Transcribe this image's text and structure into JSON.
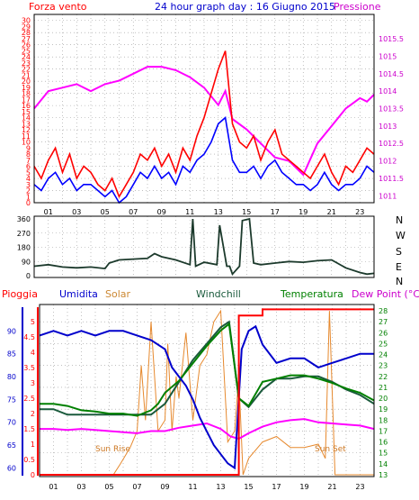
{
  "title": "24 hour graph day : 16 Giugno 2015",
  "colors": {
    "wind": "#ff0000",
    "pressure": "#ff00ff",
    "gust": "#0000ff",
    "direction": "#1c3a2c",
    "rain": "#ff0000",
    "humidity": "#0000cc",
    "solar": "#e6892e",
    "windchill": "#1a5a3c",
    "temperature": "#008000",
    "dewpoint": "#ff00ff",
    "grid": "#9a9a9a"
  },
  "chart_data": [
    {
      "id": "wind",
      "type": "line",
      "left_axis_label": "Forza vento",
      "right_axis_label": "Pressione",
      "x_ticks": [
        "01",
        "03",
        "05",
        "07",
        "09",
        "11",
        "13",
        "15",
        "17",
        "19",
        "21",
        "23"
      ],
      "x_range": [
        0,
        24
      ],
      "ylim_left": [
        0,
        31
      ],
      "ylim_right": [
        1010.8,
        1016.2
      ],
      "left_ticks": [
        0,
        1,
        2,
        3,
        4,
        5,
        6,
        7,
        8,
        9,
        10,
        11,
        12,
        13,
        14,
        15,
        16,
        17,
        18,
        19,
        20,
        21,
        22,
        23,
        24,
        25,
        26,
        27,
        28,
        29,
        30
      ],
      "right_ticks": [
        "1011",
        "1011.5",
        "1012",
        "1012.5",
        "1013",
        "1013.5",
        "1014",
        "1014.5",
        "1015",
        "1015.5"
      ],
      "series": [
        {
          "key": "pressure",
          "axis": "right",
          "x": [
            0,
            1,
            2,
            3,
            4,
            5,
            6,
            7,
            8,
            9,
            10,
            11,
            12,
            13,
            13.5,
            14,
            15,
            16,
            17,
            18,
            19,
            20,
            21,
            22,
            23,
            23.5,
            24
          ],
          "y": [
            1013.5,
            1014.0,
            1014.1,
            1014.2,
            1014.0,
            1014.2,
            1014.3,
            1014.5,
            1014.7,
            1014.7,
            1014.6,
            1014.4,
            1014.1,
            1013.6,
            1014.0,
            1013.2,
            1012.9,
            1012.5,
            1012.1,
            1012.0,
            1011.6,
            1012.5,
            1013.0,
            1013.5,
            1013.8,
            1013.7,
            1013.9
          ]
        },
        {
          "key": "wind",
          "axis": "left",
          "x": [
            0,
            0.5,
            1,
            1.5,
            2,
            2.5,
            3,
            3.5,
            4,
            4.5,
            5,
            5.5,
            6,
            6.5,
            7,
            7.5,
            8,
            8.5,
            9,
            9.5,
            10,
            10.5,
            11,
            11.5,
            12,
            12.5,
            13,
            13.5,
            14,
            14.5,
            15,
            15.5,
            16,
            16.5,
            17,
            17.5,
            18,
            18.5,
            19,
            19.5,
            20,
            20.5,
            21,
            21.5,
            22,
            22.5,
            23,
            23.5,
            24
          ],
          "y": [
            6,
            4,
            7,
            9,
            5,
            8,
            4,
            6,
            5,
            3,
            2,
            4,
            1,
            3,
            5,
            8,
            7,
            9,
            6,
            8,
            5,
            9,
            7,
            11,
            14,
            18,
            22,
            25,
            13,
            10,
            9,
            11,
            7,
            10,
            12,
            8,
            7,
            6,
            5,
            4,
            6,
            8,
            5,
            3,
            6,
            5,
            7,
            9,
            8
          ]
        },
        {
          "key": "gust",
          "axis": "left",
          "x": [
            0,
            0.5,
            1,
            1.5,
            2,
            2.5,
            3,
            3.5,
            4,
            4.5,
            5,
            5.5,
            6,
            6.5,
            7,
            7.5,
            8,
            8.5,
            9,
            9.5,
            10,
            10.5,
            11,
            11.5,
            12,
            12.5,
            13,
            13.5,
            14,
            14.5,
            15,
            15.5,
            16,
            16.5,
            17,
            17.5,
            18,
            18.5,
            19,
            19.5,
            20,
            20.5,
            21,
            21.5,
            22,
            22.5,
            23,
            23.5,
            24
          ],
          "y": [
            3,
            2,
            4,
            5,
            3,
            4,
            2,
            3,
            3,
            2,
            1,
            2,
            0,
            1,
            3,
            5,
            4,
            6,
            4,
            5,
            3,
            6,
            5,
            7,
            8,
            10,
            13,
            14,
            7,
            5,
            5,
            6,
            4,
            6,
            7,
            5,
            4,
            3,
            3,
            2,
            3,
            5,
            3,
            2,
            3,
            3,
            4,
            6,
            5
          ]
        }
      ]
    },
    {
      "id": "direction",
      "type": "line",
      "x_range": [
        0,
        24
      ],
      "ylim": [
        0,
        360
      ],
      "y_ticks": [
        0,
        90,
        180,
        270,
        360
      ],
      "compass_labels": [
        "N",
        "W",
        "S",
        "E",
        "N"
      ],
      "series": [
        {
          "key": "direction",
          "x": [
            0,
            1,
            2,
            3,
            4,
            5,
            5.3,
            6,
            7,
            8,
            8.5,
            9,
            10,
            11,
            11.2,
            11.4,
            12,
            12.9,
            13.1,
            13.6,
            13.8,
            14,
            14.5,
            14.7,
            15.2,
            15.5,
            16,
            17,
            18,
            19,
            20,
            21,
            22,
            23,
            23.5,
            24
          ],
          "y": [
            60,
            70,
            55,
            50,
            55,
            45,
            80,
            100,
            105,
            110,
            140,
            120,
            100,
            70,
            360,
            60,
            85,
            70,
            320,
            60,
            60,
            10,
            60,
            350,
            360,
            80,
            70,
            80,
            90,
            85,
            95,
            100,
            50,
            20,
            10,
            15
          ]
        }
      ]
    },
    {
      "id": "weather",
      "type": "line",
      "legend": [
        "Pioggia",
        "Umidita",
        "Solar",
        "Windchill",
        "Temperatura",
        "Dew Point (°C)"
      ],
      "x_range": [
        0,
        24
      ],
      "rain_ticks": [
        0,
        0.5,
        1,
        1.5,
        2,
        2.5,
        3,
        3.5,
        4,
        4.5,
        5
      ],
      "rain_range": [
        0,
        5.5
      ],
      "humidity_ticks": [
        60,
        65,
        70,
        75,
        80,
        85,
        90
      ],
      "humidity_range": [
        58.5,
        95
      ],
      "temp_ticks": [
        13,
        14,
        15,
        16,
        17,
        18,
        19,
        20,
        21,
        22,
        23,
        24,
        25,
        26,
        27,
        28
      ],
      "temp_range": [
        13,
        28.5
      ],
      "annotations": [
        "Sun Rise",
        "Sun Set"
      ],
      "series": [
        {
          "key": "rain",
          "axis": "rain",
          "x": [
            0,
            14.3,
            14.3,
            16,
            16,
            24
          ],
          "y": [
            0,
            0,
            5.2,
            5.2,
            5.4,
            5.4
          ]
        },
        {
          "key": "humidity",
          "axis": "humidity",
          "x": [
            0,
            1,
            2,
            3,
            4,
            5,
            6,
            7,
            8,
            9,
            9.5,
            10,
            10.5,
            11,
            11.5,
            12,
            12.5,
            13,
            13.5,
            14,
            14.5,
            15,
            15.5,
            16,
            17,
            18,
            19,
            20,
            21,
            22,
            23,
            24
          ],
          "y": [
            89,
            90,
            89,
            90,
            89,
            90,
            90,
            89,
            88,
            86,
            82,
            80,
            78,
            75,
            71,
            68,
            65,
            63,
            61,
            60,
            86,
            90,
            91,
            87,
            83,
            84,
            84,
            82,
            83,
            84,
            85,
            85
          ]
        },
        {
          "key": "solar",
          "axis": "temp",
          "x": [
            0,
            5.3,
            5.8,
            6.5,
            7,
            7.3,
            7.6,
            8,
            8.5,
            9,
            9.2,
            9.5,
            9.8,
            10,
            10.5,
            11,
            11.5,
            12,
            12.5,
            13,
            13.5,
            14,
            14.3,
            14.6,
            15,
            16,
            17,
            18,
            19,
            20,
            20.5,
            20.8,
            21.2,
            24
          ],
          "y": [
            13,
            13,
            14,
            15.5,
            17,
            23,
            18,
            27,
            17,
            18,
            25,
            17,
            22,
            20,
            26,
            18,
            23,
            24,
            27,
            28,
            16,
            17,
            22,
            13,
            14.5,
            16,
            16.5,
            15.5,
            15.5,
            15.8,
            14.5,
            28,
            13,
            13
          ]
        },
        {
          "key": "windchill",
          "axis": "temp",
          "x": [
            0,
            1,
            2,
            3,
            4,
            5,
            6,
            7,
            8,
            9,
            10,
            11,
            12,
            13,
            13.6,
            14.3,
            15,
            16,
            17,
            18,
            19,
            20,
            21,
            22,
            23,
            24
          ],
          "y": [
            19,
            19,
            18.5,
            18.5,
            18.5,
            18.5,
            18.5,
            18.5,
            18.5,
            19.5,
            21.5,
            23.5,
            25,
            26.5,
            27,
            20,
            19.2,
            20.8,
            21.8,
            21.8,
            22,
            22,
            21.5,
            20.8,
            20.3,
            19.5
          ]
        },
        {
          "key": "temperature",
          "axis": "temp",
          "x": [
            0,
            1,
            2,
            3,
            4,
            5,
            6,
            7,
            8,
            8.5,
            9,
            10,
            11,
            12,
            13,
            13.6,
            14.3,
            15,
            16,
            17,
            18,
            19,
            20,
            21,
            22,
            23,
            24
          ],
          "y": [
            19.5,
            19.5,
            19.3,
            18.9,
            18.8,
            18.6,
            18.6,
            18.4,
            18.9,
            19.5,
            20.5,
            21.6,
            23.2,
            24.8,
            26.2,
            26.8,
            20,
            19.3,
            21.5,
            21.8,
            22.1,
            22.1,
            21.8,
            21.4,
            20.9,
            20.5,
            19.8
          ]
        },
        {
          "key": "dewpoint",
          "axis": "temp",
          "x": [
            0,
            1,
            2,
            3,
            4,
            5,
            6,
            7,
            8,
            9,
            10,
            11,
            12,
            13,
            13.7,
            14.3,
            15,
            16,
            17,
            18,
            19,
            20,
            21,
            22,
            23,
            24
          ],
          "y": [
            17.2,
            17.2,
            17.1,
            17.2,
            17.1,
            17.0,
            16.9,
            16.8,
            17.0,
            17.0,
            17.3,
            17.5,
            17.7,
            17.2,
            16.5,
            16.3,
            16.8,
            17.4,
            17.8,
            18.0,
            18.1,
            17.8,
            17.7,
            17.6,
            17.5,
            17.2
          ]
        }
      ]
    }
  ]
}
